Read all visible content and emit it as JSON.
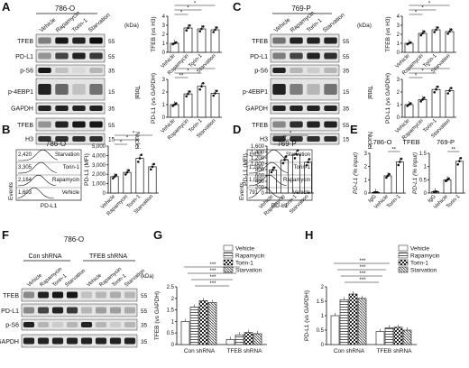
{
  "panel_letters": [
    "A",
    "B",
    "C",
    "D",
    "E",
    "F",
    "G",
    "H"
  ],
  "conditions": [
    "Vehicle",
    "Rapamycin",
    "Torin-1",
    "Starvation"
  ],
  "cell_lines": {
    "a": "786-O",
    "c": "769-P",
    "b": "786-O",
    "d": "769-P",
    "e_left": "786-O",
    "e_right": "769-P",
    "f": "786-O"
  },
  "units": {
    "kda": "(kDa)"
  },
  "blot_labels": {
    "a": [
      "TFEB",
      "PD-L1",
      "p-S6",
      "p-4EBP1",
      "GAPDH",
      "TFEB",
      "H3"
    ],
    "c": [
      "TFEB",
      "PD-L1",
      "p-S6",
      "p-4EBP1",
      "GAPDH",
      "TFEB",
      "H3"
    ],
    "f": [
      "TFEB",
      "PD-L1",
      "p-S6",
      "GAPDH"
    ]
  },
  "markers": {
    "a": [
      "55",
      "55",
      "35",
      "15",
      "35",
      "55",
      "15"
    ],
    "c": [
      "55",
      "55",
      "35",
      "15",
      "35",
      "55",
      "15"
    ],
    "f": [
      "55",
      "55",
      "35",
      "35"
    ]
  },
  "fraction_labels": {
    "total": "Total",
    "nuclei": "Nuclei"
  },
  "flow_labels": {
    "xlabel": "PD-L1",
    "ylabel": "Events",
    "b_values": [
      "2,420",
      "3,305",
      "2,164",
      "1,603"
    ],
    "d_values": [
      "1,037",
      "1,290",
      "1,062",
      "791"
    ],
    "rows": [
      "Starvation",
      "Torin-1",
      "Rapamycin",
      "Vehicle"
    ]
  },
  "e_labels": {
    "title": "TFEB",
    "groups": [
      "IgG",
      "Vehicle",
      "Torin-1"
    ],
    "ylabel": "PD-L1 (% input)"
  },
  "f_labels": {
    "con": "Con shRNA",
    "tfeb": "TFEB shRNA"
  },
  "legend": [
    "Vehicle",
    "Rapamycin",
    "Torin-1",
    "Starvation"
  ],
  "significance": "*",
  "chart_data": [
    {
      "id": "A-top",
      "type": "bar",
      "categories": [
        "Vehicle",
        "Rapamycin",
        "Torin-1",
        "Starvation"
      ],
      "values": [
        1.0,
        2.7,
        2.6,
        2.5
      ],
      "ylabel": "TFEB (vs H3)",
      "ylim": [
        0,
        4
      ],
      "yticks": [
        0,
        1,
        2,
        3,
        4
      ]
    },
    {
      "id": "A-bottom",
      "type": "bar",
      "categories": [
        "Vehicle",
        "Rapamycin",
        "Torin-1",
        "Starvation"
      ],
      "values": [
        1.0,
        1.85,
        2.45,
        1.9
      ],
      "ylabel": "PD-L1 (vs GAPDH)",
      "ylim": [
        0,
        3
      ],
      "yticks": [
        0,
        1,
        2,
        3
      ]
    },
    {
      "id": "B",
      "type": "bar",
      "categories": [
        "Vehicle",
        "Rapamycin",
        "Torin-1",
        "Starvation"
      ],
      "values": [
        1750,
        2200,
        3700,
        2800
      ],
      "ylabel": "PD-L1 (MFI)",
      "ylim": [
        0,
        5000
      ],
      "yticks": [
        0,
        1000,
        2000,
        3000,
        4000,
        5000
      ],
      "ytick_labels": [
        "0",
        "1,000",
        "2,000",
        "3,000",
        "4,000",
        "5,000"
      ]
    },
    {
      "id": "C-top",
      "type": "bar",
      "categories": [
        "Vehicle",
        "Rapamycin",
        "Torin-1",
        "Starvation"
      ],
      "values": [
        1.0,
        2.1,
        2.5,
        2.3
      ],
      "ylabel": "TFEB (vs H3)",
      "ylim": [
        0,
        4
      ],
      "yticks": [
        0,
        1,
        2,
        3,
        4
      ]
    },
    {
      "id": "C-bottom",
      "type": "bar",
      "categories": [
        "Vehicle",
        "Rapamycin",
        "Torin-1",
        "Starvation"
      ],
      "values": [
        1.0,
        1.4,
        2.2,
        2.1
      ],
      "ylabel": "PD-L1 (vs GAPDH)",
      "ylim": [
        0,
        3
      ],
      "yticks": [
        0,
        1,
        2,
        3
      ]
    },
    {
      "id": "D",
      "type": "bar",
      "categories": [
        "Vehicle",
        "Rapamycin",
        "Torin-1",
        "Starvation"
      ],
      "values": [
        790,
        1130,
        1320,
        1050
      ],
      "ylabel": "PD-L1 (MFI)",
      "ylim": [
        0,
        1600
      ],
      "yticks": [
        0,
        200,
        400,
        600,
        800,
        1000,
        1200,
        1400,
        1600
      ],
      "ytick_labels": [
        "0",
        "200",
        "400",
        "600",
        "800",
        "1,000",
        "1,200",
        "1,400",
        "1,600"
      ]
    },
    {
      "id": "E-786-O",
      "type": "bar",
      "categories": [
        "IgG",
        "Vehicle",
        "Torin-1"
      ],
      "values": [
        0.05,
        1.3,
        2.35
      ],
      "ylabel": "PD-L1 (% input)",
      "ylim": [
        0,
        3
      ],
      "yticks": [
        0,
        1,
        2,
        3
      ]
    },
    {
      "id": "E-769-P",
      "type": "bar",
      "categories": [
        "IgG",
        "Vehicle",
        "Torin-1"
      ],
      "values": [
        0.05,
        0.5,
        1.2
      ],
      "ylabel": "PD-L1 (% input)",
      "ylim": [
        0,
        1.5
      ],
      "yticks": [
        0,
        0.5,
        1.0,
        1.5
      ]
    },
    {
      "id": "G",
      "type": "bar",
      "groups": [
        "Con shRNA",
        "TFEB shRNA"
      ],
      "series": [
        {
          "name": "Vehicle",
          "values": [
            1.0,
            0.22
          ]
        },
        {
          "name": "Rapamycin",
          "values": [
            1.62,
            0.42
          ]
        },
        {
          "name": "Torin-1",
          "values": [
            1.9,
            0.52
          ]
        },
        {
          "name": "Starvation",
          "values": [
            1.82,
            0.47
          ]
        }
      ],
      "ylabel": "TFEB (vs GAPDH)",
      "ylim": [
        0,
        2.5
      ],
      "yticks": [
        0,
        0.5,
        1.0,
        1.5,
        2.0,
        2.5
      ]
    },
    {
      "id": "H",
      "type": "bar",
      "groups": [
        "Con shRNA",
        "TFEB shRNA"
      ],
      "series": [
        {
          "name": "Vehicle",
          "values": [
            1.0,
            0.45
          ]
        },
        {
          "name": "Rapamycin",
          "values": [
            1.55,
            0.58
          ]
        },
        {
          "name": "Torin-1",
          "values": [
            1.75,
            0.6
          ]
        },
        {
          "name": "Starvation",
          "values": [
            1.6,
            0.5
          ]
        }
      ],
      "ylabel": "PD-L1 (vs GAPDH)",
      "ylim": [
        0,
        2.0
      ],
      "yticks": [
        0,
        0.5,
        1.0,
        1.5,
        2.0
      ]
    }
  ]
}
